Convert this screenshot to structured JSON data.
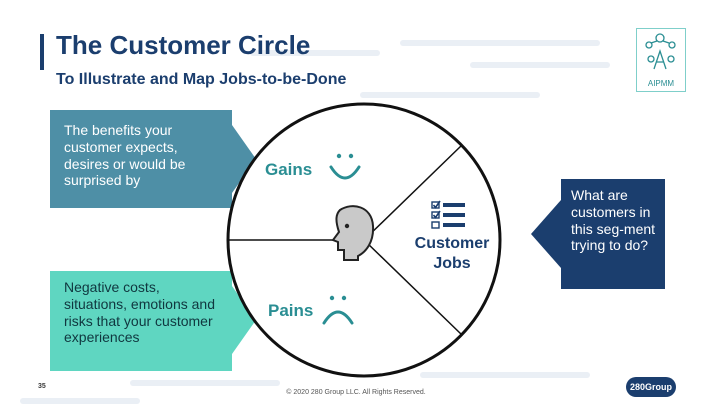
{
  "slide": {
    "title": "The Customer Circle",
    "subtitle": "To Illustrate and Map Jobs-to-be-Done",
    "logo_text": "AIPMM",
    "page_number": "35",
    "copyright": "© 2020 280 Group LLC. All Rights Reserved.",
    "brand": "280Group"
  },
  "gains": {
    "label": "Gains",
    "description": "The benefits your customer expects, desires or would be surprised by",
    "icon": "smile-icon"
  },
  "pains": {
    "label": "Pains",
    "description": "Negative costs, situations, emotions and risks that your customer experiences",
    "icon": "frown-icon"
  },
  "jobs": {
    "label_line1": "Customer",
    "label_line2": "Jobs",
    "description": "What are customers in this seg-ment trying to do?",
    "icon": "checklist-icon"
  },
  "center": {
    "icon": "face-icon"
  },
  "colors": {
    "navy": "#1b3e6e",
    "teal_dark": "#4e8fa6",
    "teal_light": "#5fd6c1",
    "accent_teal": "#2a8e93"
  }
}
